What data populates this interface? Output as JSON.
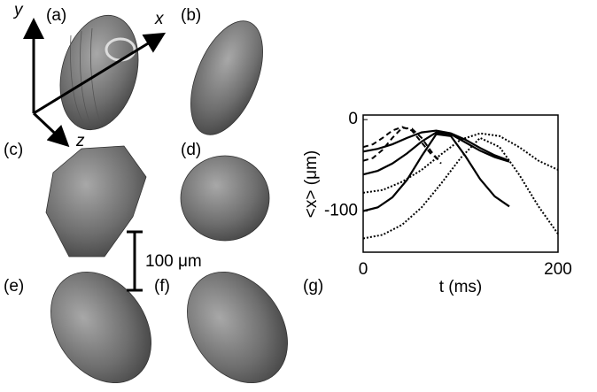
{
  "labels": {
    "a": "(a)",
    "b": "(b)",
    "c": "(c)",
    "d": "(d)",
    "e": "(e)",
    "f": "(f)",
    "g": "(g)",
    "axis_x": "x",
    "axis_y": "y",
    "axis_z": "z",
    "scale_bar": "100 μm"
  },
  "chart_data": {
    "type": "line",
    "xlabel": "t (ms)",
    "ylabel": "<x> (μm)",
    "xlim": [
      0,
      200
    ],
    "ylim": [
      -145,
      5
    ],
    "xticks": [
      0,
      200
    ],
    "yticks": [
      0,
      -100
    ],
    "color": "#000000",
    "series": [
      {
        "style": "solid",
        "x": [
          0,
          15,
          30,
          45,
          60,
          75,
          90,
          105,
          120,
          135,
          150
        ],
        "values": [
          -35,
          -32,
          -27,
          -20,
          -14,
          -12,
          -15,
          -22,
          -31,
          -39,
          -45
        ]
      },
      {
        "style": "solid",
        "x": [
          0,
          15,
          30,
          45,
          60,
          75,
          90,
          105,
          120,
          135,
          150
        ],
        "values": [
          -60,
          -56,
          -48,
          -37,
          -24,
          -14,
          -16,
          -25,
          -34,
          -41,
          -46
        ]
      },
      {
        "style": "solid",
        "x": [
          0,
          15,
          30,
          45,
          60,
          75,
          90,
          105,
          120,
          135,
          150
        ],
        "values": [
          -100,
          -96,
          -85,
          -66,
          -40,
          -16,
          -18,
          -40,
          -65,
          -84,
          -95
        ]
      },
      {
        "style": "dashed",
        "x": [
          0,
          10,
          20,
          30,
          40,
          50,
          60,
          70,
          80
        ],
        "values": [
          -30,
          -27,
          -20,
          -12,
          -8,
          -12,
          -25,
          -38,
          -45
        ]
      },
      {
        "style": "dashed",
        "x": [
          0,
          10,
          20,
          30,
          40,
          50,
          60,
          70,
          80
        ],
        "values": [
          -45,
          -42,
          -33,
          -20,
          -9,
          -10,
          -20,
          -35,
          -48
        ]
      },
      {
        "style": "dotted",
        "x": [
          0,
          20,
          40,
          60,
          80,
          100,
          120,
          140,
          160,
          180,
          200
        ],
        "values": [
          -80,
          -77,
          -68,
          -55,
          -38,
          -22,
          -15,
          -18,
          -30,
          -45,
          -55
        ]
      },
      {
        "style": "dotted",
        "x": [
          0,
          20,
          40,
          60,
          80,
          100,
          120,
          140,
          160,
          180,
          200
        ],
        "values": [
          -130,
          -126,
          -115,
          -96,
          -70,
          -42,
          -20,
          -30,
          -60,
          -95,
          -125
        ]
      }
    ]
  }
}
